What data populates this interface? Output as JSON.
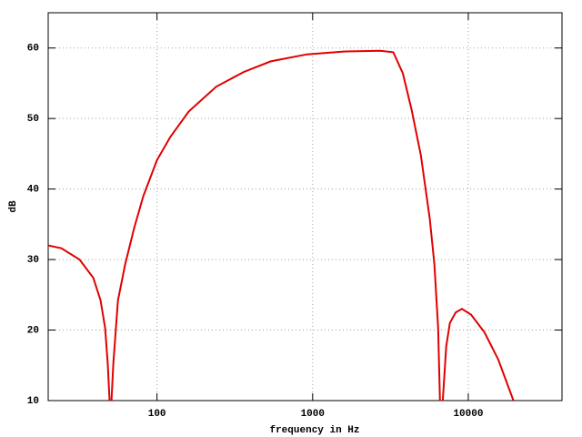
{
  "chart_data": {
    "type": "line",
    "x_label": "frequency in Hz",
    "y_label": "dB",
    "log_x": true,
    "grid": true,
    "xlim": [
      20,
      40000
    ],
    "ylim": [
      10,
      65
    ],
    "xticks": [
      100,
      1000,
      10000
    ],
    "yticks": [
      10,
      20,
      30,
      40,
      50,
      60
    ],
    "x": [
      20,
      24.3,
      31.8,
      39,
      43.4,
      46.4,
      48.3,
      49.6,
      null,
      51,
      52.4,
      56.1,
      62.4,
      71.4,
      81.7,
      100,
      122,
      160,
      240,
      360,
      538,
      920,
      1580,
      2720,
      3300,
      3800,
      4330,
      4960,
      5660,
      6060,
      6400,
      6580,
      null,
      6860,
      7220,
      7620,
      8300,
      9100,
      10400,
      12700,
      15600,
      19500
    ],
    "series": [
      {
        "color": "#e00000",
        "values": [
          32.0,
          31.6,
          30.0,
          27.4,
          24.2,
          20.3,
          15.2,
          10,
          null,
          10,
          15.2,
          24.2,
          29.3,
          34.5,
          39.0,
          44.1,
          47.4,
          51.0,
          54.5,
          56.6,
          58.1,
          59.1,
          59.5,
          59.6,
          59.4,
          56.4,
          51.2,
          44.8,
          35.8,
          29.3,
          20.3,
          10,
          null,
          10,
          17.7,
          21.0,
          22.5,
          23.0,
          22.2,
          19.7,
          15.8,
          10
        ]
      }
    ]
  }
}
